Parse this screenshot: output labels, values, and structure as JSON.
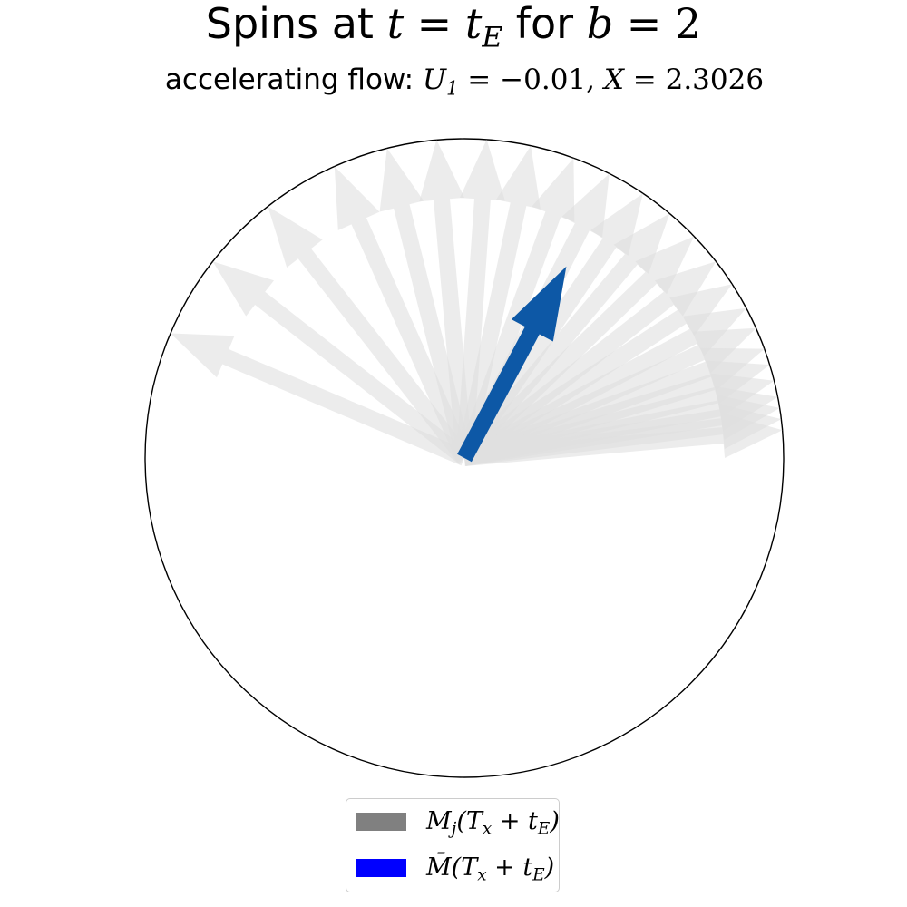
{
  "figure": {
    "title_prefix": "Spins at ",
    "title_math_lhs": "t",
    "title_math_eq": " = ",
    "title_math_rhs": "t",
    "title_math_rhs_sub": "E",
    "title_middle": " for ",
    "title_b": "b",
    "title_b_eq": " = 2",
    "subtitle_prefix": "accelerating flow: ",
    "subtitle_U": "U",
    "subtitle_U_sub": "1",
    "subtitle_U_val": " = −0.01, ",
    "subtitle_X": "X",
    "subtitle_X_val": " = 2.3026"
  },
  "legend": {
    "items": [
      {
        "label_main": "M",
        "label_sub": "j",
        "label_rest": "(T",
        "label_sub2": "x",
        "label_tail": " + t",
        "label_sub3": "E",
        "label_close": ")",
        "color": "#808080"
      },
      {
        "label_main": "M̄",
        "label_sub": "",
        "label_rest": "(T",
        "label_sub2": "x",
        "label_tail": " + t",
        "label_sub3": "E",
        "label_close": ")",
        "color": "#0000ff"
      }
    ]
  },
  "chart_data": {
    "type": "vector-diagram",
    "circle_radius": 1.0,
    "spin_color": "#e0e0e0",
    "mean_color": "#0d58a6",
    "spins_angles_deg": [
      157,
      142,
      128,
      114,
      104,
      95,
      86,
      78,
      70,
      63,
      56,
      50,
      44,
      38,
      33,
      28,
      24,
      20,
      17,
      14,
      11,
      9,
      7,
      5
    ],
    "spins_length": 1.0,
    "mean_angle_deg": 62,
    "mean_length": 0.68
  }
}
